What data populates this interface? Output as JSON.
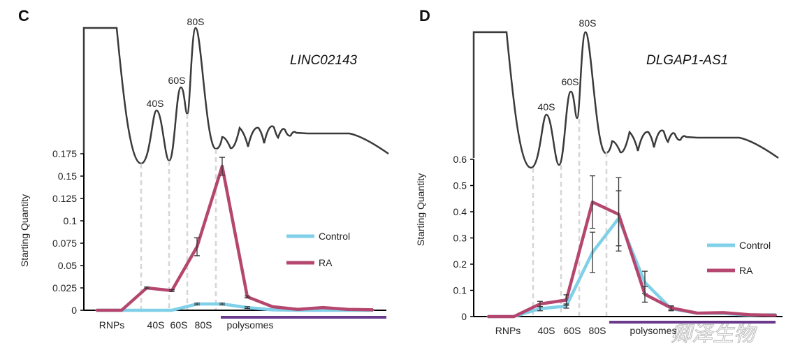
{
  "colors": {
    "RA": "#b5476f",
    "Control": "#7fd0e8",
    "polysome_bar": "#6b3a8c",
    "profile": "#3a3a3a"
  },
  "watermark": "卿泽生物",
  "chart_data": [
    {
      "panel": "C",
      "title": "LINC02143",
      "type": "line",
      "ylabel": "Starting Quantity",
      "ylim": [
        0,
        0.175
      ],
      "yticks": [
        "0",
        "0.025",
        "0.05",
        "0.075",
        "0.1",
        "0.125",
        "0.15",
        "0.175"
      ],
      "profile_peaks": [
        "40S",
        "60S",
        "80S"
      ],
      "xlabels": [
        "RNPs",
        "40S",
        "60S",
        "80S",
        "polysomes"
      ],
      "x": [
        1,
        2,
        3,
        4,
        5,
        6,
        7,
        8,
        9,
        10,
        11,
        12
      ],
      "legend": "right",
      "series": [
        {
          "name": "Control",
          "values": [
            0,
            0,
            0,
            0,
            0.007,
            0.007,
            0.003,
            0.0005,
            0,
            0,
            0,
            0
          ],
          "errors": [
            0,
            0,
            0,
            0,
            0.001,
            0.001,
            0.001,
            0,
            0,
            0,
            0,
            0
          ]
        },
        {
          "name": "RA",
          "values": [
            0,
            0,
            0.025,
            0.022,
            0.071,
            0.161,
            0.015,
            0.004,
            0.001,
            0.003,
            0.001,
            0.0005
          ],
          "errors": [
            0,
            0,
            0.001,
            0.001,
            0.01,
            0.01,
            0.001,
            0,
            0,
            0,
            0,
            0
          ]
        }
      ]
    },
    {
      "panel": "D",
      "title": "DLGAP1-AS1",
      "type": "line",
      "ylabel": "Starting Quantity",
      "ylim": [
        0,
        0.6
      ],
      "yticks": [
        "0",
        "0.1",
        "0.2",
        "0.3",
        "0.4",
        "0.5",
        "0.6"
      ],
      "profile_peaks": [
        "40S",
        "60S",
        "80S"
      ],
      "xlabels": [
        "RNPs",
        "40S",
        "60S",
        "80S",
        "polysomes"
      ],
      "x": [
        1,
        2,
        3,
        4,
        5,
        6,
        7,
        8,
        9,
        10,
        11,
        12
      ],
      "legend": "right",
      "series": [
        {
          "name": "Control",
          "values": [
            0,
            0,
            0.03,
            0.04,
            0.245,
            0.375,
            0.13,
            0.03,
            0.013,
            0.012,
            0.005,
            0.007
          ],
          "errors": [
            0,
            0,
            0.008,
            0.008,
            0.077,
            0.105,
            0.043,
            0.008,
            0,
            0,
            0,
            0
          ]
        },
        {
          "name": "RA",
          "values": [
            0,
            0,
            0.048,
            0.063,
            0.437,
            0.39,
            0.085,
            0.033,
            0.013,
            0.015,
            0.007,
            0.005
          ],
          "errors": [
            0,
            0,
            0.01,
            0.02,
            0.1,
            0.14,
            0.03,
            0.008,
            0,
            0,
            0,
            0
          ]
        }
      ]
    }
  ]
}
